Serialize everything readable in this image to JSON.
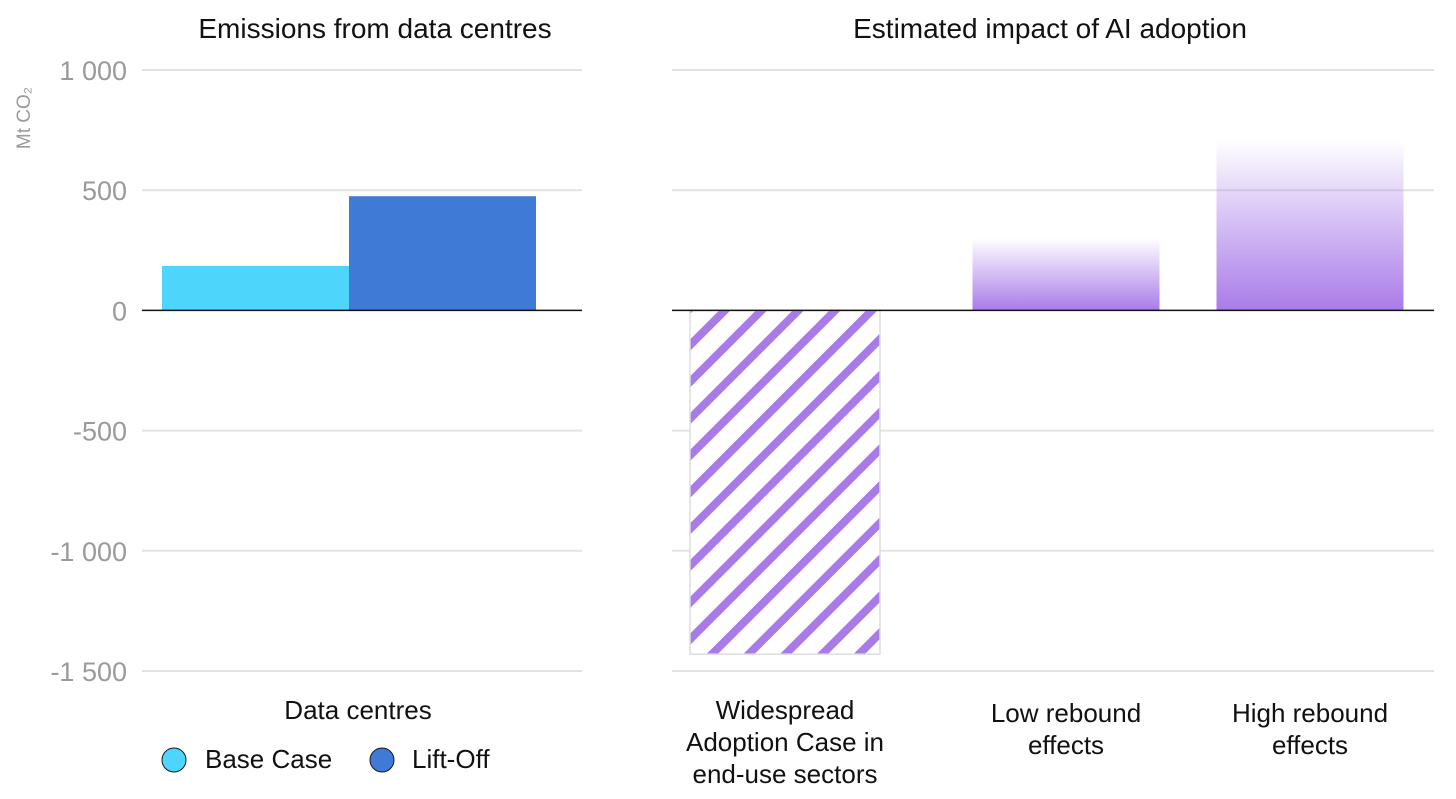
{
  "chart_data": [
    {
      "type": "bar",
      "title": "Emissions from data centres",
      "ylabel": "Mt CO₂",
      "ylim": [
        -1500,
        1000
      ],
      "yticks": [
        1000,
        500,
        0,
        -500,
        -1000,
        -1500
      ],
      "ytick_labels": [
        "1 000",
        "500",
        "0",
        "-500",
        "-1 000",
        "-1 500"
      ],
      "categories": [
        "Data centres"
      ],
      "series": [
        {
          "name": "Base Case",
          "values": [
            185
          ],
          "color": "#4dd5fb"
        },
        {
          "name": "Lift-Off",
          "values": [
            475
          ],
          "color": "#3f7ad6"
        }
      ],
      "legend": [
        {
          "name": "Base Case",
          "color": "#4dd5fb"
        },
        {
          "name": "Lift-Off",
          "color": "#3f7ad6"
        }
      ]
    },
    {
      "type": "bar",
      "title": "Estimated impact of AI adoption",
      "ylim": [
        -1500,
        1000
      ],
      "categories": [
        {
          "lines": [
            "Widespread",
            "Adoption Case in",
            "end-use sectors"
          ]
        },
        {
          "lines": [
            "Low rebound",
            "effects"
          ]
        },
        {
          "lines": [
            "High rebound",
            "effects"
          ]
        }
      ],
      "values": [
        -1430,
        300,
        710
      ],
      "styles": [
        "hatched",
        "gradient",
        "gradient"
      ],
      "color": "#a97be9"
    }
  ]
}
